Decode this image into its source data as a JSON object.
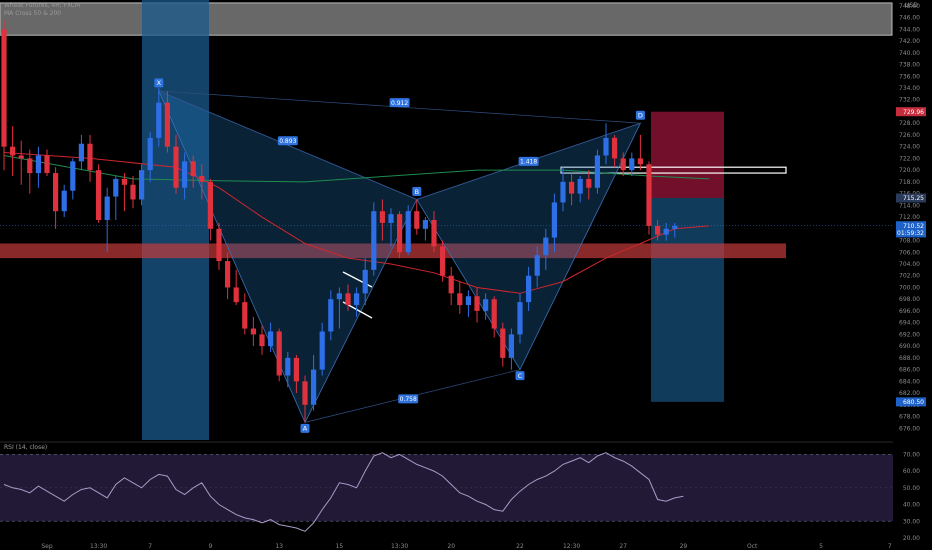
{
  "header": {
    "symbol_line": "Wheat Futures, 4H, FXCM",
    "indicator_line": "MA Cross 50 & 200",
    "currency": "USD"
  },
  "rsi": {
    "label": "RSI (14, close)"
  },
  "colors": {
    "up_candle": "#2e6ee6",
    "down_candle": "#e0323e",
    "ma_fast": "#d0262e",
    "ma_slow": "#1e8c50",
    "pattern_fill": "#1f6fb2",
    "stop_zone": "#a3173d",
    "target_zone": "#1a5a8c",
    "support_zone": "#c43a3a",
    "rsi_line": "#a89cc8"
  },
  "chart_data": [
    {
      "type": "candlestick",
      "title": "Wheat Futures, 4H, FXCM",
      "price_axis": {
        "range": [
          674,
          749
        ],
        "ticks": [
          "676.00",
          "678.00",
          "680.00",
          "682.00",
          "684.00",
          "686.00",
          "688.00",
          "690.00",
          "692.00",
          "694.00",
          "696.00",
          "698.00",
          "700.00",
          "702.00",
          "704.00",
          "706.00",
          "708.00",
          "710.00",
          "712.00",
          "714.00",
          "716.00",
          "718.00",
          "720.00",
          "722.00",
          "724.00",
          "726.00",
          "728.00",
          "730.00",
          "732.00",
          "734.00",
          "736.00",
          "738.00",
          "740.00",
          "742.00",
          "744.00",
          "746.00",
          "748.00"
        ],
        "markers": [
          {
            "label": "729.96",
            "value": 729.96,
            "color": "#c62d3c"
          },
          {
            "label": "715.25",
            "value": 715.25,
            "color": "#2a3a5a"
          },
          {
            "label": "710.52",
            "value": 710.52,
            "color": "#1e62c8"
          },
          {
            "label": "01:59:32",
            "value": 709.3,
            "color": "#1e62c8"
          },
          {
            "label": "680.50",
            "value": 680.5,
            "color": "#1e62c8"
          }
        ]
      },
      "time_axis": {
        "ticks": [
          {
            "label": "Sep",
            "slot": 5
          },
          {
            "label": "13:30",
            "slot": 11
          },
          {
            "label": "7",
            "slot": 17
          },
          {
            "label": "9",
            "slot": 24
          },
          {
            "label": "13",
            "slot": 32
          },
          {
            "label": "15",
            "slot": 39
          },
          {
            "label": "13:30",
            "slot": 46
          },
          {
            "label": "20",
            "slot": 52
          },
          {
            "label": "22",
            "slot": 60
          },
          {
            "label": "12:30",
            "slot": 66
          },
          {
            "label": "27",
            "slot": 72
          },
          {
            "label": "29",
            "slot": 79
          },
          {
            "label": "Oct",
            "slot": 87
          },
          {
            "label": "5",
            "slot": 95
          },
          {
            "label": "7",
            "slot": 103
          }
        ]
      },
      "candles": [
        {
          "o": 744.0,
          "h": 745.5,
          "l": 720.0,
          "c": 724.0
        },
        {
          "o": 724.0,
          "h": 727.5,
          "l": 719.0,
          "c": 722.5
        },
        {
          "o": 722.5,
          "h": 725.0,
          "l": 717.5,
          "c": 722.0
        },
        {
          "o": 722.0,
          "h": 723.5,
          "l": 716.0,
          "c": 719.5
        },
        {
          "o": 719.5,
          "h": 724.0,
          "l": 717.0,
          "c": 722.5
        },
        {
          "o": 722.5,
          "h": 723.5,
          "l": 719.0,
          "c": 719.5
        },
        {
          "o": 719.5,
          "h": 720.5,
          "l": 710.0,
          "c": 713.0
        },
        {
          "o": 713.0,
          "h": 717.5,
          "l": 712.0,
          "c": 716.5
        },
        {
          "o": 716.5,
          "h": 722.0,
          "l": 715.0,
          "c": 721.5
        },
        {
          "o": 721.5,
          "h": 726.0,
          "l": 720.0,
          "c": 724.5
        },
        {
          "o": 724.5,
          "h": 726.0,
          "l": 718.0,
          "c": 720.0
        },
        {
          "o": 720.0,
          "h": 721.0,
          "l": 711.0,
          "c": 711.5
        },
        {
          "o": 711.5,
          "h": 717.0,
          "l": 706.0,
          "c": 715.5
        },
        {
          "o": 715.5,
          "h": 719.0,
          "l": 711.5,
          "c": 718.5
        },
        {
          "o": 718.5,
          "h": 719.5,
          "l": 713.0,
          "c": 717.5
        },
        {
          "o": 717.5,
          "h": 719.0,
          "l": 713.5,
          "c": 715.0
        },
        {
          "o": 715.0,
          "h": 721.0,
          "l": 714.0,
          "c": 720.0
        },
        {
          "o": 720.0,
          "h": 726.5,
          "l": 718.0,
          "c": 725.5
        },
        {
          "o": 725.5,
          "h": 734.0,
          "l": 724.0,
          "c": 731.5
        },
        {
          "o": 731.5,
          "h": 733.5,
          "l": 723.0,
          "c": 724.0
        },
        {
          "o": 724.0,
          "h": 726.0,
          "l": 716.0,
          "c": 717.0
        },
        {
          "o": 717.0,
          "h": 723.0,
          "l": 715.0,
          "c": 721.5
        },
        {
          "o": 721.5,
          "h": 722.5,
          "l": 717.0,
          "c": 719.0
        },
        {
          "o": 719.0,
          "h": 721.0,
          "l": 715.0,
          "c": 718.0
        },
        {
          "o": 718.0,
          "h": 718.5,
          "l": 708.0,
          "c": 710.0
        },
        {
          "o": 710.0,
          "h": 711.0,
          "l": 703.0,
          "c": 704.5
        },
        {
          "o": 704.5,
          "h": 706.0,
          "l": 698.0,
          "c": 700.0
        },
        {
          "o": 700.0,
          "h": 703.0,
          "l": 697.0,
          "c": 697.5
        },
        {
          "o": 697.5,
          "h": 699.0,
          "l": 692.0,
          "c": 693.0
        },
        {
          "o": 693.0,
          "h": 695.0,
          "l": 690.0,
          "c": 692.0
        },
        {
          "o": 692.0,
          "h": 693.5,
          "l": 688.5,
          "c": 690.0
        },
        {
          "o": 690.0,
          "h": 694.0,
          "l": 689.0,
          "c": 692.5
        },
        {
          "o": 692.5,
          "h": 693.0,
          "l": 684.0,
          "c": 685.0
        },
        {
          "o": 685.0,
          "h": 689.0,
          "l": 683.0,
          "c": 688.0
        },
        {
          "o": 688.0,
          "h": 688.5,
          "l": 682.0,
          "c": 684.0
        },
        {
          "o": 684.0,
          "h": 685.0,
          "l": 677.0,
          "c": 680.0
        },
        {
          "o": 680.0,
          "h": 688.5,
          "l": 679.0,
          "c": 686.0
        },
        {
          "o": 686.0,
          "h": 694.0,
          "l": 685.0,
          "c": 692.5
        },
        {
          "o": 692.5,
          "h": 699.5,
          "l": 691.0,
          "c": 698.0
        },
        {
          "o": 698.0,
          "h": 700.0,
          "l": 693.0,
          "c": 699.0
        },
        {
          "o": 699.0,
          "h": 700.5,
          "l": 696.0,
          "c": 697.0
        },
        {
          "o": 697.0,
          "h": 700.0,
          "l": 695.0,
          "c": 699.0
        },
        {
          "o": 699.0,
          "h": 705.0,
          "l": 697.0,
          "c": 703.0
        },
        {
          "o": 703.0,
          "h": 714.5,
          "l": 702.0,
          "c": 713.0
        },
        {
          "o": 713.0,
          "h": 715.0,
          "l": 708.0,
          "c": 711.0
        },
        {
          "o": 711.0,
          "h": 713.5,
          "l": 707.0,
          "c": 712.5
        },
        {
          "o": 712.5,
          "h": 713.0,
          "l": 705.0,
          "c": 706.0
        },
        {
          "o": 706.0,
          "h": 714.0,
          "l": 705.5,
          "c": 713.0
        },
        {
          "o": 713.0,
          "h": 715.0,
          "l": 709.0,
          "c": 710.0
        },
        {
          "o": 710.0,
          "h": 712.0,
          "l": 708.0,
          "c": 711.5
        },
        {
          "o": 711.5,
          "h": 713.0,
          "l": 706.0,
          "c": 707.0
        },
        {
          "o": 707.0,
          "h": 708.0,
          "l": 701.0,
          "c": 702.0
        },
        {
          "o": 702.0,
          "h": 703.5,
          "l": 697.0,
          "c": 699.0
        },
        {
          "o": 699.0,
          "h": 701.0,
          "l": 695.5,
          "c": 697.0
        },
        {
          "o": 697.0,
          "h": 699.5,
          "l": 695.0,
          "c": 698.5
        },
        {
          "o": 698.5,
          "h": 700.0,
          "l": 694.0,
          "c": 696.0
        },
        {
          "o": 696.0,
          "h": 699.0,
          "l": 694.5,
          "c": 698.0
        },
        {
          "o": 698.0,
          "h": 698.5,
          "l": 691.5,
          "c": 693.0
        },
        {
          "o": 693.0,
          "h": 694.0,
          "l": 686.5,
          "c": 688.0
        },
        {
          "o": 688.0,
          "h": 693.0,
          "l": 686.0,
          "c": 692.0
        },
        {
          "o": 692.0,
          "h": 699.0,
          "l": 690.5,
          "c": 697.5
        },
        {
          "o": 697.5,
          "h": 703.5,
          "l": 696.0,
          "c": 702.0
        },
        {
          "o": 702.0,
          "h": 707.0,
          "l": 700.0,
          "c": 705.5
        },
        {
          "o": 705.5,
          "h": 710.0,
          "l": 703.0,
          "c": 708.5
        },
        {
          "o": 708.5,
          "h": 716.0,
          "l": 706.0,
          "c": 714.5
        },
        {
          "o": 714.5,
          "h": 720.5,
          "l": 713.0,
          "c": 718.0
        },
        {
          "o": 718.0,
          "h": 719.5,
          "l": 714.0,
          "c": 716.0
        },
        {
          "o": 716.0,
          "h": 719.0,
          "l": 714.5,
          "c": 718.5
        },
        {
          "o": 718.5,
          "h": 720.0,
          "l": 715.0,
          "c": 717.0
        },
        {
          "o": 717.0,
          "h": 723.5,
          "l": 716.0,
          "c": 722.5
        },
        {
          "o": 722.5,
          "h": 728.0,
          "l": 721.0,
          "c": 725.5
        },
        {
          "o": 725.5,
          "h": 726.0,
          "l": 720.5,
          "c": 722.0
        },
        {
          "o": 722.0,
          "h": 723.0,
          "l": 719.0,
          "c": 720.0
        },
        {
          "o": 720.0,
          "h": 723.0,
          "l": 719.0,
          "c": 722.0
        },
        {
          "o": 722.0,
          "h": 726.0,
          "l": 720.0,
          "c": 721.0
        },
        {
          "o": 721.0,
          "h": 721.5,
          "l": 709.0,
          "c": 710.5
        },
        {
          "o": 710.5,
          "h": 711.5,
          "l": 708.0,
          "c": 709.0
        },
        {
          "o": 709.0,
          "h": 711.0,
          "l": 708.0,
          "c": 710.0
        },
        {
          "o": 710.0,
          "h": 711.0,
          "l": 708.5,
          "c": 710.5
        }
      ],
      "moving_averages": [
        {
          "name": "MA 50",
          "color": "#d0262e",
          "points": [
            [
              0,
              723.0
            ],
            [
              10,
              722.0
            ],
            [
              20,
              720.5
            ],
            [
              25,
              717.0
            ],
            [
              30,
              712.0
            ],
            [
              35,
              707.5
            ],
            [
              40,
              705.0
            ],
            [
              45,
              704.0
            ],
            [
              50,
              702.5
            ],
            [
              55,
              700.0
            ],
            [
              60,
              699.0
            ],
            [
              65,
              701.0
            ],
            [
              70,
              705.0
            ],
            [
              74,
              707.5
            ],
            [
              78,
              710.0
            ],
            [
              82,
              710.5
            ]
          ]
        },
        {
          "name": "MA 200",
          "color": "#1e8c50",
          "points": [
            [
              0,
              722.5
            ],
            [
              15,
              718.5
            ],
            [
              25,
              718.2
            ],
            [
              35,
              718.0
            ],
            [
              45,
              719.0
            ],
            [
              55,
              720.0
            ],
            [
              65,
              720.0
            ],
            [
              75,
              719.0
            ],
            [
              82,
              718.5
            ]
          ]
        }
      ],
      "harmonic_pattern": {
        "points": [
          {
            "label": "X",
            "slot": 18,
            "price": 733.5
          },
          {
            "label": "A",
            "slot": 35,
            "price": 677.0
          },
          {
            "label": "B",
            "slot": 48,
            "price": 715.0
          },
          {
            "label": "C",
            "slot": 60,
            "price": 686.0
          },
          {
            "label": "D",
            "slot": 74,
            "price": 728.0
          }
        ],
        "ratios": [
          {
            "label": "0.893",
            "slot": 33,
            "price": 725.0
          },
          {
            "label": "0.912",
            "slot": 46,
            "price": 731.5
          },
          {
            "label": "1.418",
            "slot": 61,
            "price": 721.5
          },
          {
            "label": "0.758",
            "slot": 47,
            "price": 681.0
          }
        ]
      },
      "zones": {
        "support_band": [
          705.0,
          707.5
        ],
        "resistance_box": [
          719.5,
          720.5
        ],
        "stop_zone": [
          715.25,
          729.96
        ],
        "target_zone": [
          680.5,
          715.25
        ],
        "top_box": [
          743.0,
          748.5
        ]
      }
    },
    {
      "type": "line",
      "title": "RSI (14, close)",
      "y_range": [
        20,
        75
      ],
      "y_ticks": [
        "20.00",
        "30.00",
        "40.00",
        "50.00",
        "60.00",
        "70.00"
      ],
      "levels": [
        70,
        30
      ],
      "values": [
        52,
        50,
        49,
        47,
        51,
        48,
        45,
        42,
        46,
        49,
        50,
        47,
        44,
        52,
        56,
        53,
        50,
        55,
        58,
        57,
        49,
        46,
        50,
        53,
        45,
        40,
        37,
        34,
        32,
        31,
        29,
        31,
        28,
        27,
        26,
        24,
        29,
        37,
        44,
        53,
        52,
        50,
        60,
        69,
        71,
        68,
        70,
        67,
        64,
        62,
        60,
        57,
        52,
        47,
        45,
        42,
        40,
        37,
        36,
        43,
        48,
        52,
        55,
        57,
        60,
        64,
        66,
        68,
        65,
        69,
        71,
        68,
        66,
        63,
        59,
        55,
        43,
        42,
        44,
        45
      ]
    }
  ]
}
